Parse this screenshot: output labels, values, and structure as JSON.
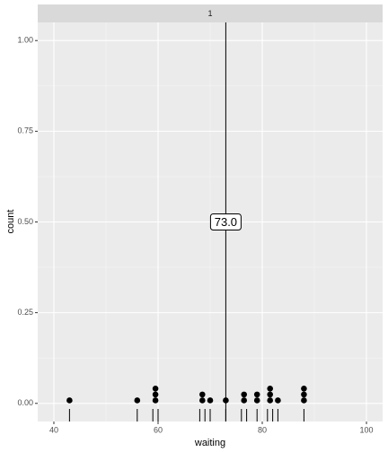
{
  "chart_data": {
    "type": "dotplot",
    "strip_label": "1",
    "x_label": "waiting",
    "y_label": "count",
    "xlim": [
      36.9,
      103.1
    ],
    "ylim": [
      -0.05,
      1.05
    ],
    "xticks": [
      40,
      60,
      80,
      100
    ],
    "yticks": [
      {
        "value": 0,
        "label": "0.00"
      },
      {
        "value": 0.25,
        "label": "0.25"
      },
      {
        "value": 0.5,
        "label": "0.50"
      },
      {
        "value": 0.75,
        "label": "0.75"
      },
      {
        "value": 1,
        "label": "1.00"
      }
    ],
    "grid": true,
    "color": "#000000",
    "dot_stacks": {
      "x": [
        43,
        56,
        59.5,
        68.5,
        70,
        73,
        76.5,
        79,
        81.5,
        83,
        88
      ],
      "counts": [
        1,
        1,
        3,
        2,
        1,
        1,
        2,
        2,
        3,
        1,
        3
      ]
    },
    "rug_x": [
      43,
      56,
      59,
      60,
      68,
      69,
      70,
      73,
      76,
      77,
      79,
      81,
      82,
      83,
      88
    ],
    "vline": {
      "value": 73,
      "label": "73.0"
    }
  }
}
